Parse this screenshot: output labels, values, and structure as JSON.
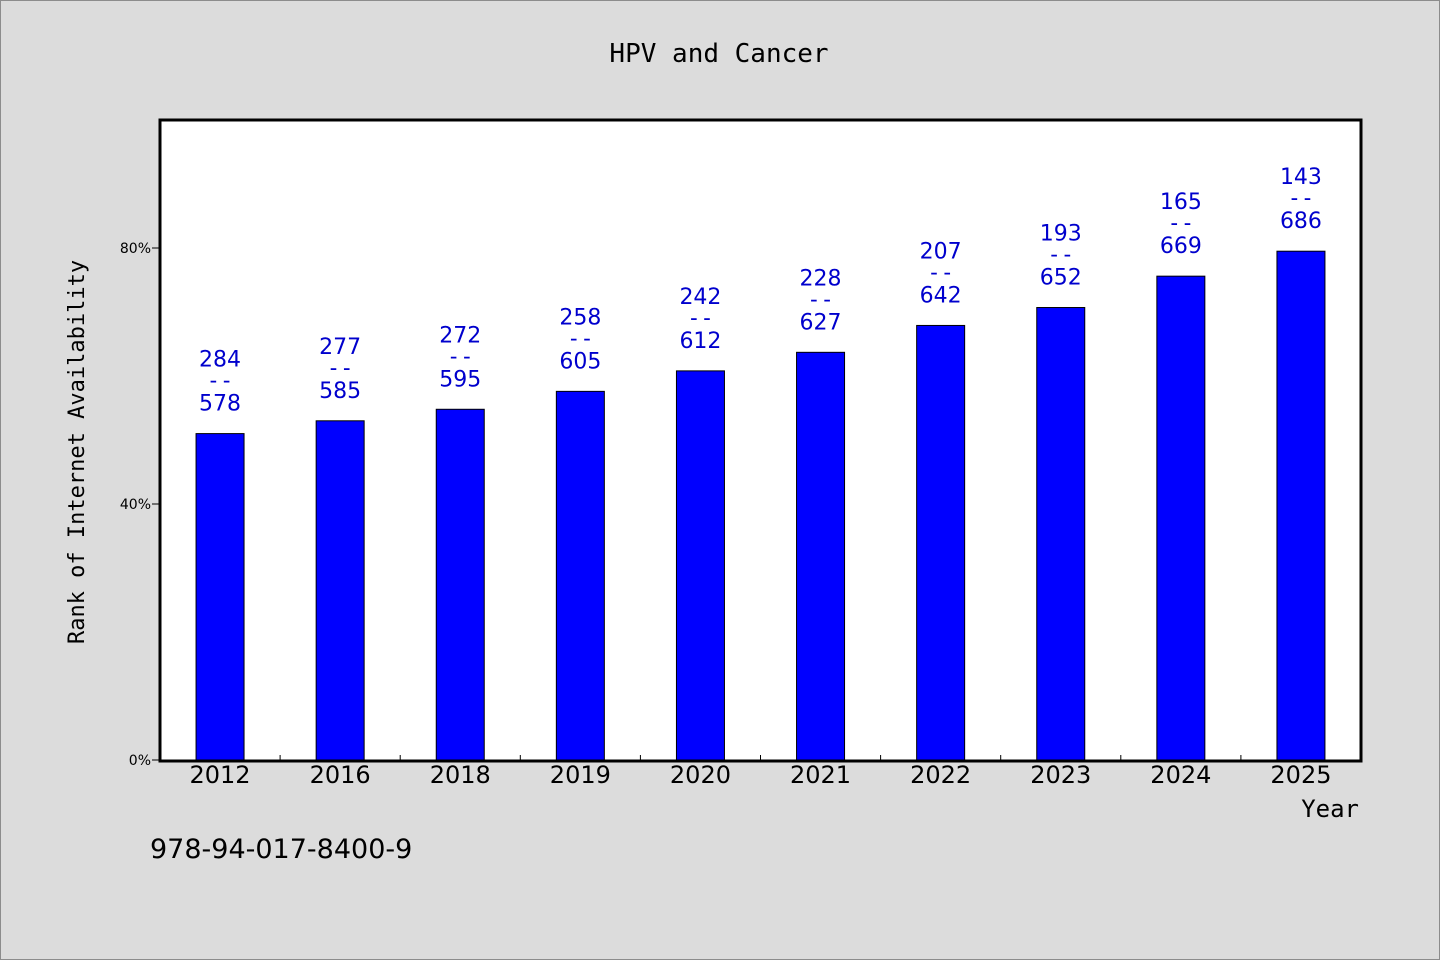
{
  "chart_data": {
    "type": "bar",
    "title": "HPV and Cancer",
    "xlabel": "Year",
    "ylabel": "Rank of Internet Availability",
    "categories": [
      "2012",
      "2016",
      "2018",
      "2019",
      "2020",
      "2021",
      "2022",
      "2023",
      "2024",
      "2025"
    ],
    "series": [
      {
        "values": [
          51,
          53,
          54.8,
          57.6,
          60.8,
          63.7,
          67.9,
          70.7,
          75.6,
          79.5
        ]
      }
    ],
    "bar_labels_top": [
      "284",
      "277",
      "272",
      "258",
      "242",
      "228",
      "207",
      "193",
      "165",
      "143"
    ],
    "bar_labels_sep": "--",
    "bar_labels_bottom": [
      "578",
      "585",
      "595",
      "605",
      "612",
      "627",
      "642",
      "652",
      "669",
      "686"
    ],
    "ylim": [
      0,
      100
    ],
    "yticks": [
      0,
      40,
      80
    ],
    "ytick_labels": [
      "0%",
      "40%",
      "80%"
    ],
    "grid": false,
    "legend": "none",
    "bar_color": "#0000ff",
    "label_color": "#0000cd"
  },
  "footer": {
    "id_text": "978-94-017-8400-9"
  }
}
